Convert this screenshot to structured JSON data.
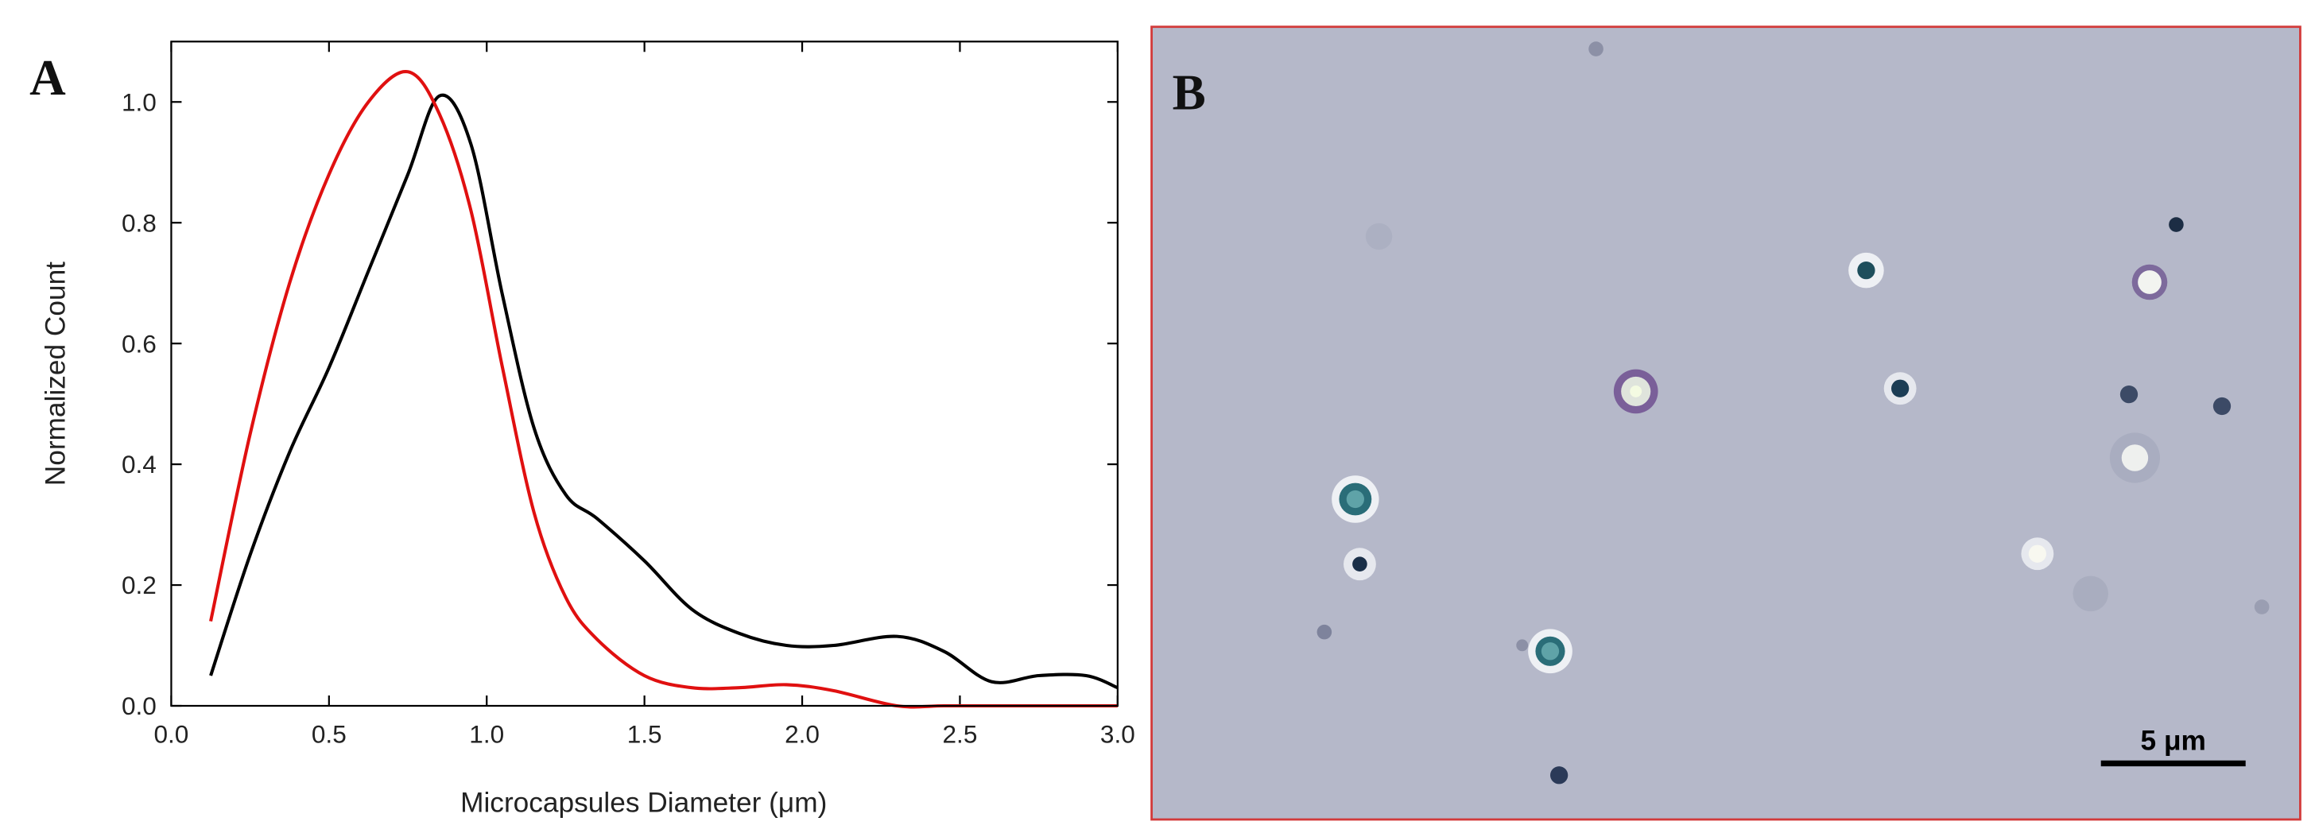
{
  "chart_data": {
    "type": "line",
    "panel_label": "A",
    "x_label": "Microcapsules Diameter (μm)",
    "y_label": "Normalized Count",
    "x": [
      0.125,
      0.25,
      0.375,
      0.5,
      0.625,
      0.75,
      0.85,
      0.95,
      1.05,
      1.15,
      1.25,
      1.35,
      1.5,
      1.65,
      1.8,
      1.95,
      2.1,
      2.3,
      2.45,
      2.6,
      2.75,
      2.9,
      3.0
    ],
    "series": [
      {
        "color": "#000000",
        "values": [
          0.05,
          0.25,
          0.42,
          0.56,
          0.72,
          0.88,
          1.01,
          0.93,
          0.68,
          0.46,
          0.35,
          0.31,
          0.24,
          0.16,
          0.12,
          0.1,
          0.1,
          0.115,
          0.09,
          0.04,
          0.05,
          0.05,
          0.03
        ]
      },
      {
        "color": "#e01010",
        "values": [
          0.14,
          0.45,
          0.7,
          0.88,
          1.0,
          1.05,
          0.98,
          0.82,
          0.56,
          0.32,
          0.18,
          0.11,
          0.05,
          0.03,
          0.03,
          0.035,
          0.025,
          0.0,
          0.0,
          0.0,
          0.0,
          0.0,
          0.0
        ]
      }
    ],
    "xlim": [
      0,
      3
    ],
    "ylim": [
      0,
      1.1
    ],
    "xticks": [
      {
        "value": 0,
        "label": "0.0"
      },
      {
        "value": 0.5,
        "label": "0.5"
      },
      {
        "value": 1,
        "label": "1.0"
      },
      {
        "value": 1.5,
        "label": "1.5"
      },
      {
        "value": 2,
        "label": "2.0"
      },
      {
        "value": 2.5,
        "label": "2.5"
      },
      {
        "value": 3,
        "label": "3.0"
      }
    ],
    "yticks": [
      {
        "value": 0,
        "label": "0.0"
      },
      {
        "value": 0.2,
        "label": "0.2"
      },
      {
        "value": 0.4,
        "label": "0.4"
      },
      {
        "value": 0.6,
        "label": "0.6"
      },
      {
        "value": 0.8,
        "label": "0.8"
      },
      {
        "value": 1,
        "label": "1.0"
      }
    ]
  },
  "image_panel": {
    "panel_label": "B",
    "scale_bar_label": "5 μm"
  }
}
